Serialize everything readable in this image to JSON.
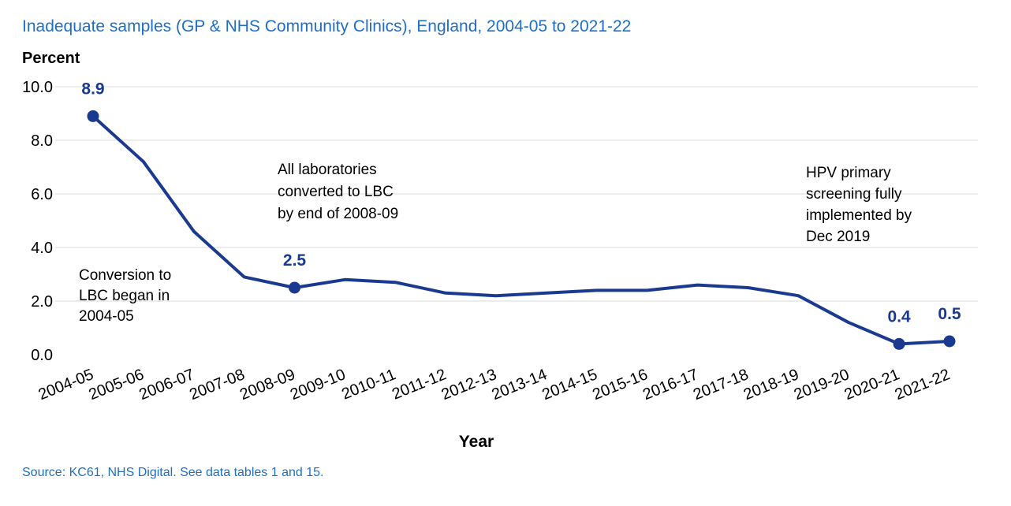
{
  "chart_data": {
    "type": "line",
    "title": "Inadequate  samples (GP & NHS Community Clinics), England, 2004-05  to 2021-22",
    "ylabel": "Percent",
    "xlabel": "Year",
    "source": "Source: KC61, NHS  Digital.  See data tables 1 and 15.",
    "ylim": [
      0,
      10
    ],
    "y_ticks": [
      "0.0",
      "2.0",
      "4.0",
      "6.0",
      "8.0",
      "10.0"
    ],
    "y_tick_values": [
      0,
      2,
      4,
      6,
      8,
      10
    ],
    "grid": true,
    "categories": [
      "2004-05",
      "2005-06",
      "2006-07",
      "2007-08",
      "2008-09",
      "2009-10",
      "2010-11",
      "2011-12",
      "2012-13",
      "2013-14",
      "2014-15",
      "2015-16",
      "2016-17",
      "2017-18",
      "2018-19",
      "2019-20",
      "2020-21",
      "2021-22"
    ],
    "series": [
      {
        "values": [
          8.9,
          7.2,
          4.6,
          2.9,
          2.5,
          2.8,
          2.7,
          2.3,
          2.2,
          2.3,
          2.4,
          2.4,
          2.6,
          2.5,
          2.2,
          1.2,
          0.4,
          0.5
        ],
        "color": "#1a3a8f"
      }
    ],
    "marked_points": [
      0,
      4,
      16,
      17
    ],
    "data_labels": [
      {
        "index": 0,
        "text": "8.9"
      },
      {
        "index": 4,
        "text": "2.5"
      },
      {
        "index": 16,
        "text": "0.4"
      },
      {
        "index": 17,
        "text": "0.5"
      }
    ],
    "annotations": [
      {
        "lines": [
          "Conversion to",
          "LBC began in",
          "2004-05"
        ]
      },
      {
        "lines": [
          "All laboratories",
          "converted to LBC",
          "by end of 2008-09"
        ]
      },
      {
        "lines": [
          "HPV primary",
          "screening fully",
          "implemented by",
          "Dec 2019"
        ]
      }
    ],
    "colors": {
      "title": "#1f6fc5",
      "line": "#1a3a8f",
      "grid": "#d9d9d9"
    }
  }
}
